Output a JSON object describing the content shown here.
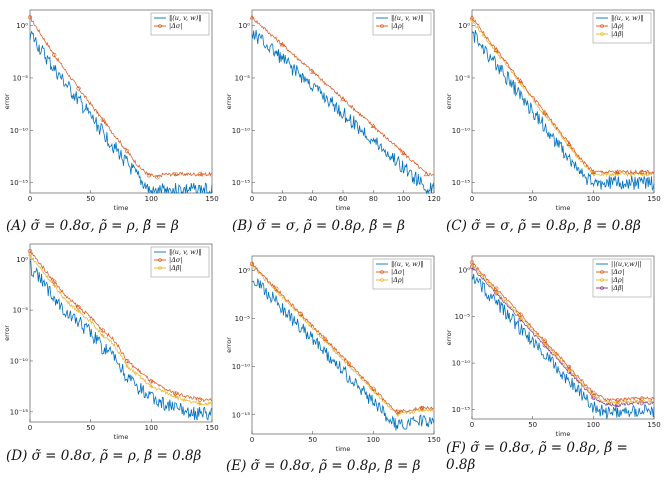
{
  "chart_data": [
    {
      "id": "A",
      "type": "line",
      "caption": "(A) σ̃ = 0.8σ, ρ̃ = ρ, β̃ = β",
      "xlabel": "time",
      "ylabel": "error",
      "xlim": [
        0,
        150
      ],
      "ylim_exp": [
        -16,
        1.5
      ],
      "yscale": "log",
      "xticks": [
        "0",
        "50",
        "100",
        "150"
      ],
      "yticks": [
        {
          "exp": 0,
          "label": "10⁰"
        },
        {
          "exp": -5,
          "label": "10⁻⁵"
        },
        {
          "exp": -10,
          "label": "10⁻¹⁰"
        },
        {
          "exp": -15,
          "label": "10⁻¹⁵"
        }
      ],
      "legend_position": "top-right",
      "series": [
        {
          "name": "‖(u, v, w)‖",
          "color": "#0072bd",
          "marker": "none",
          "x": [
            0,
            10,
            20,
            30,
            40,
            50,
            60,
            70,
            80,
            90,
            95,
            100,
            105,
            110,
            120,
            130,
            140,
            150
          ],
          "y_exp": [
            0,
            -1.8,
            -3.5,
            -5,
            -6.5,
            -8,
            -9.5,
            -11,
            -12.5,
            -14,
            -14.6,
            -15.3,
            -15.3,
            -15,
            -15,
            -15,
            -15,
            -15
          ]
        },
        {
          "name": "|Δσ|",
          "color": "#d95319",
          "marker": "circle",
          "x": [
            0,
            10,
            20,
            30,
            40,
            50,
            60,
            70,
            80,
            90,
            98,
            100,
            105,
            110,
            120,
            130,
            140,
            150
          ],
          "y_exp": [
            0.8,
            -1,
            -2.8,
            -4.4,
            -6,
            -7.5,
            -9,
            -10.5,
            -12,
            -13.5,
            -14.3,
            -14.3,
            -14.5,
            -14.2,
            -14.2,
            -14.2,
            -14.2,
            -14.2
          ]
        }
      ]
    },
    {
      "id": "B",
      "type": "line",
      "caption": "(B) σ̃ = σ, ρ̃ = 0.8ρ, β̃ = β",
      "xlabel": "time",
      "ylabel": "error",
      "xlim": [
        0,
        120
      ],
      "ylim_exp": [
        -16,
        1.5
      ],
      "yscale": "log",
      "xticks": [
        "0",
        "20",
        "40",
        "60",
        "80",
        "100",
        "120"
      ],
      "yticks": [
        {
          "exp": 0,
          "label": "10⁰"
        },
        {
          "exp": -5,
          "label": "10⁻⁵"
        },
        {
          "exp": -10,
          "label": "10⁻¹⁰"
        },
        {
          "exp": -15,
          "label": "10⁻¹⁵"
        }
      ],
      "legend_position": "top-right",
      "series": [
        {
          "name": "‖(u, v, w)‖",
          "color": "#0072bd",
          "marker": "none",
          "x": [
            0,
            10,
            20,
            30,
            40,
            50,
            60,
            70,
            80,
            90,
            100,
            110,
            115,
            120
          ],
          "y_exp": [
            0,
            -1.2,
            -2.5,
            -3.8,
            -5.1,
            -6.4,
            -7.7,
            -9,
            -10.3,
            -11.6,
            -12.9,
            -14.2,
            -15,
            -15
          ]
        },
        {
          "name": "|Δρ|",
          "color": "#d95319",
          "marker": "triangle",
          "x": [
            0,
            10,
            20,
            30,
            40,
            50,
            60,
            70,
            80,
            90,
            100,
            110,
            115,
            120
          ],
          "y_exp": [
            0.8,
            -0.5,
            -1.8,
            -3.1,
            -4.4,
            -5.7,
            -7,
            -8.3,
            -9.6,
            -10.9,
            -12.2,
            -13.5,
            -14.2,
            -14.2
          ]
        }
      ]
    },
    {
      "id": "C",
      "type": "line",
      "caption": "(C) σ̃ = σ, ρ̃ = 0.8ρ, β̃ = 0.8β",
      "xlabel": "time",
      "ylabel": "error",
      "xlim": [
        0,
        150
      ],
      "ylim_exp": [
        -16,
        1.5
      ],
      "yscale": "log",
      "xticks": [
        "0",
        "50",
        "100",
        "150"
      ],
      "yticks": [
        {
          "exp": 0,
          "label": "10⁰"
        },
        {
          "exp": -5,
          "label": "10⁻⁵"
        },
        {
          "exp": -10,
          "label": "10⁻¹⁰"
        },
        {
          "exp": -15,
          "label": "10⁻¹⁵"
        }
      ],
      "legend_position": "top-right",
      "series": [
        {
          "name": "‖(u, v, w)‖",
          "color": "#0072bd",
          "marker": "none",
          "x": [
            0,
            10,
            20,
            30,
            40,
            50,
            60,
            70,
            80,
            90,
            100,
            110,
            120,
            130,
            140,
            150
          ],
          "y_exp": [
            0,
            -1.5,
            -3,
            -4.5,
            -6,
            -7.5,
            -9,
            -10.5,
            -12,
            -13.5,
            -14.5,
            -14.3,
            -14.3,
            -14.3,
            -14.3,
            -14.3
          ]
        },
        {
          "name": "|Δρ|",
          "color": "#d95319",
          "marker": "triangle",
          "x": [
            0,
            10,
            20,
            30,
            40,
            50,
            60,
            70,
            80,
            90,
            100,
            110,
            120,
            130,
            140,
            150
          ],
          "y_exp": [
            0.8,
            -0.8,
            -2.3,
            -3.8,
            -5.3,
            -6.8,
            -8.3,
            -9.8,
            -11.3,
            -12.8,
            -14,
            -14,
            -14,
            -14,
            -14,
            -14
          ]
        },
        {
          "name": "|Δβ|",
          "color": "#edb120",
          "marker": "star",
          "x": [
            0,
            10,
            20,
            30,
            40,
            50,
            60,
            70,
            80,
            90,
            100,
            110,
            120,
            130,
            140,
            150
          ],
          "y_exp": [
            0.5,
            -1,
            -2.5,
            -4,
            -5.5,
            -7,
            -8.5,
            -10,
            -11.5,
            -13,
            -14.2,
            -14.2,
            -14.2,
            -14.2,
            -14.2,
            -14.2
          ]
        }
      ]
    },
    {
      "id": "D",
      "type": "line",
      "caption": "(D) σ̃ = 0.8σ, ρ̃ = ρ, β̃ = 0.8β",
      "xlabel": "time",
      "ylabel": "error",
      "xlim": [
        0,
        150
      ],
      "ylim_exp": [
        -16,
        1.5
      ],
      "yscale": "log",
      "xticks": [
        "0",
        "50",
        "100",
        "150"
      ],
      "yticks": [
        {
          "exp": 0,
          "label": "10⁰"
        },
        {
          "exp": -5,
          "label": "10⁻⁵"
        },
        {
          "exp": -10,
          "label": "10⁻¹⁰"
        },
        {
          "exp": -15,
          "label": "10⁻¹⁵"
        }
      ],
      "legend_position": "top-right",
      "series": [
        {
          "name": "‖(u, v, w)‖",
          "color": "#0072bd",
          "marker": "none",
          "x": [
            0,
            10,
            20,
            30,
            40,
            50,
            60,
            70,
            80,
            90,
            100,
            110,
            120,
            130,
            140,
            150
          ],
          "y_exp": [
            0,
            -1.5,
            -3,
            -4.5,
            -5.5,
            -6.5,
            -8,
            -9,
            -11,
            -12,
            -13,
            -13.5,
            -14,
            -14.3,
            -14.5,
            -14.5
          ]
        },
        {
          "name": "|Δσ|",
          "color": "#d95319",
          "marker": "circle",
          "x": [
            0,
            10,
            20,
            30,
            40,
            50,
            60,
            70,
            80,
            90,
            100,
            110,
            120,
            130,
            140,
            150
          ],
          "y_exp": [
            0.8,
            -0.7,
            -2.2,
            -3.7,
            -4.7,
            -5.7,
            -7,
            -8,
            -10,
            -11,
            -12,
            -12.7,
            -13.2,
            -13.5,
            -13.8,
            -13.8
          ]
        },
        {
          "name": "|Δβ|",
          "color": "#edb120",
          "marker": "star",
          "x": [
            0,
            10,
            20,
            30,
            40,
            50,
            60,
            70,
            80,
            90,
            100,
            110,
            120,
            130,
            140,
            150
          ],
          "y_exp": [
            0.4,
            -1.1,
            -2.6,
            -4.1,
            -5.1,
            -6.1,
            -7.5,
            -8.5,
            -10.5,
            -11.5,
            -12.5,
            -13,
            -13.5,
            -14,
            -14.2,
            -14.2
          ]
        }
      ]
    },
    {
      "id": "E",
      "type": "line",
      "caption": "(E) σ̃ = 0.8σ, ρ̃ = 0.8ρ, β̃ = β",
      "xlabel": "time",
      "ylabel": "error",
      "xlim": [
        0,
        150
      ],
      "ylim_exp": [
        -17,
        1.5
      ],
      "yscale": "log",
      "xticks": [
        "0",
        "50",
        "100",
        "150"
      ],
      "yticks": [
        {
          "exp": 0,
          "label": "10⁰"
        },
        {
          "exp": -5,
          "label": "10⁻⁵"
        },
        {
          "exp": -10,
          "label": "10⁻¹⁰"
        },
        {
          "exp": -15,
          "label": "10⁻¹⁵"
        }
      ],
      "legend_position": "top-right",
      "series": [
        {
          "name": "‖(u, v, w)‖",
          "color": "#0072bd",
          "marker": "none",
          "x": [
            0,
            10,
            20,
            30,
            40,
            50,
            60,
            70,
            80,
            90,
            100,
            110,
            120,
            130,
            140,
            150
          ],
          "y_exp": [
            0,
            -1.3,
            -2.6,
            -3.9,
            -5.2,
            -6.5,
            -7.8,
            -9.1,
            -10.4,
            -11.7,
            -13,
            -14.3,
            -15.5,
            -15.2,
            -15,
            -15
          ]
        },
        {
          "name": "|Δσ|",
          "color": "#d95319",
          "marker": "circle",
          "x": [
            0,
            10,
            20,
            30,
            40,
            50,
            60,
            70,
            80,
            90,
            100,
            110,
            120,
            130,
            140,
            150
          ],
          "y_exp": [
            0.7,
            -0.6,
            -1.9,
            -3.2,
            -4.5,
            -5.8,
            -7.1,
            -8.4,
            -9.7,
            -11,
            -12.3,
            -13.6,
            -14.7,
            -14.5,
            -14.3,
            -14.3
          ]
        },
        {
          "name": "|Δρ|",
          "color": "#edb120",
          "marker": "star",
          "x": [
            0,
            10,
            20,
            30,
            40,
            50,
            60,
            70,
            80,
            90,
            100,
            110,
            120,
            130,
            140,
            150
          ],
          "y_exp": [
            0.5,
            -0.8,
            -2.1,
            -3.4,
            -4.7,
            -6,
            -7.3,
            -8.6,
            -9.9,
            -11.2,
            -12.5,
            -13.8,
            -15,
            -14.8,
            -14.5,
            -14.5
          ]
        }
      ]
    },
    {
      "id": "F",
      "type": "line",
      "caption": "(F) σ̃ = 0.8σ, ρ̃ = 0.8ρ, β̃ = 0.8β",
      "xlabel": "time",
      "ylabel": "error",
      "xlim": [
        0,
        150
      ],
      "ylim_exp": [
        -16,
        1.5
      ],
      "yscale": "log",
      "xticks": [
        "0",
        "50",
        "100",
        "150"
      ],
      "yticks": [
        {
          "exp": 0,
          "label": "10⁰"
        },
        {
          "exp": -5,
          "label": "10⁻⁵"
        },
        {
          "exp": -10,
          "label": "10⁻¹⁰"
        },
        {
          "exp": -15,
          "label": "10⁻¹⁵"
        }
      ],
      "legend_position": "top-right",
      "series": [
        {
          "name": "||(u,v,w)||",
          "color": "#0072bd",
          "marker": "none",
          "x": [
            0,
            10,
            20,
            30,
            40,
            50,
            60,
            70,
            80,
            90,
            100,
            110,
            120,
            130,
            140,
            150
          ],
          "y_exp": [
            0,
            -1.4,
            -2.8,
            -4.2,
            -5.6,
            -7,
            -8.4,
            -9.8,
            -11.2,
            -12.6,
            -14,
            -14.6,
            -14.6,
            -14.4,
            -14.4,
            -14.4
          ]
        },
        {
          "name": "|Δσ|",
          "color": "#d95319",
          "marker": "circle",
          "x": [
            0,
            10,
            20,
            30,
            40,
            50,
            60,
            70,
            80,
            90,
            100,
            110,
            120,
            130,
            140,
            150
          ],
          "y_exp": [
            0.8,
            -0.6,
            -2,
            -3.4,
            -4.8,
            -6.2,
            -7.6,
            -9,
            -10.4,
            -11.8,
            -13.2,
            -13.9,
            -14,
            -13.8,
            -13.8,
            -13.8
          ]
        },
        {
          "name": "|Δρ|",
          "color": "#edb120",
          "marker": "star",
          "x": [
            0,
            10,
            20,
            30,
            40,
            50,
            60,
            70,
            80,
            90,
            100,
            110,
            120,
            130,
            140,
            150
          ],
          "y_exp": [
            0.5,
            -0.9,
            -2.3,
            -3.7,
            -5.1,
            -6.5,
            -7.9,
            -9.3,
            -10.7,
            -12.1,
            -13.5,
            -14.2,
            -14.3,
            -14.1,
            -14.1,
            -14.1
          ]
        },
        {
          "name": "|Δβ|",
          "color": "#7e2f8e",
          "marker": "circle",
          "x": [
            0,
            10,
            20,
            30,
            40,
            50,
            60,
            70,
            80,
            90,
            100,
            110,
            120,
            130,
            140,
            150
          ],
          "y_exp": [
            0.3,
            -1.1,
            -2.5,
            -3.9,
            -5.3,
            -6.7,
            -8.1,
            -9.5,
            -10.9,
            -12.3,
            -13.7,
            -14.4,
            -14.5,
            -14.3,
            -14.3,
            -14.3
          ]
        }
      ]
    }
  ]
}
